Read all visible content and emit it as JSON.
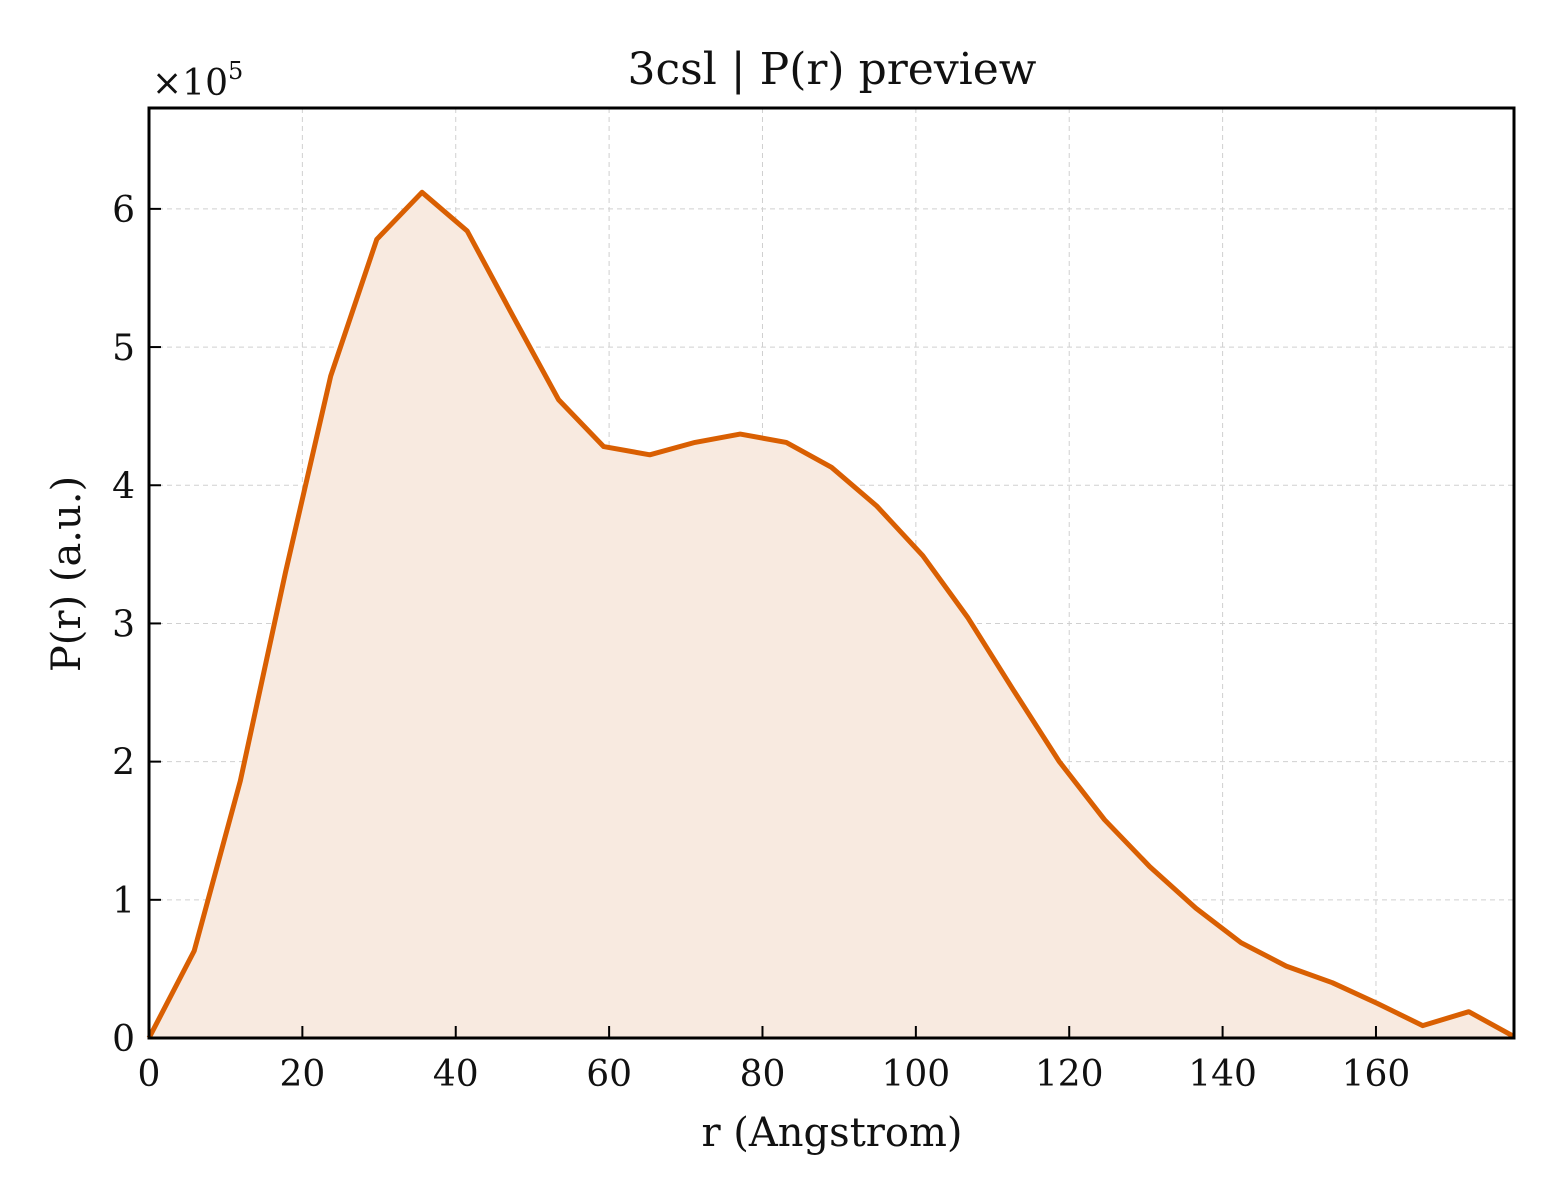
{
  "chart_data": {
    "type": "area",
    "title": "3csl | P(r) preview",
    "xlabel": "r (Angstrom)",
    "ylabel": "P(r) (a.u.)",
    "y_offset_label": "×10",
    "y_offset_exponent": "5",
    "y_scale": 100000,
    "xlim": [
      0,
      178
    ],
    "ylim": [
      0,
      673000
    ],
    "xticks": [
      0,
      20,
      40,
      60,
      80,
      100,
      120,
      140,
      160
    ],
    "yticks": [
      0,
      1,
      2,
      3,
      4,
      5,
      6
    ],
    "grid": true,
    "line_color": "#d95f02",
    "fill_color": "#f8eae0",
    "series": [
      {
        "x": [
          0,
          5.9,
          11.9,
          17.8,
          23.7,
          29.7,
          35.6,
          41.5,
          47.5,
          53.4,
          59.3,
          65.3,
          71.2,
          77.1,
          83.1,
          89.0,
          94.9,
          100.9,
          106.8,
          112.7,
          118.7,
          124.6,
          130.5,
          136.5,
          142.4,
          148.3,
          154.3,
          160.2,
          166.1,
          172.1,
          178.0
        ],
        "y": [
          0,
          63000,
          186000,
          337000,
          479000,
          578000,
          612000,
          584000,
          522000,
          462000,
          428000,
          422000,
          431000,
          437000,
          431000,
          413000,
          385000,
          349000,
          304000,
          252000,
          200000,
          158000,
          124000,
          94000,
          69000,
          52000,
          40000,
          25000,
          9000,
          19000,
          1000
        ]
      }
    ]
  }
}
